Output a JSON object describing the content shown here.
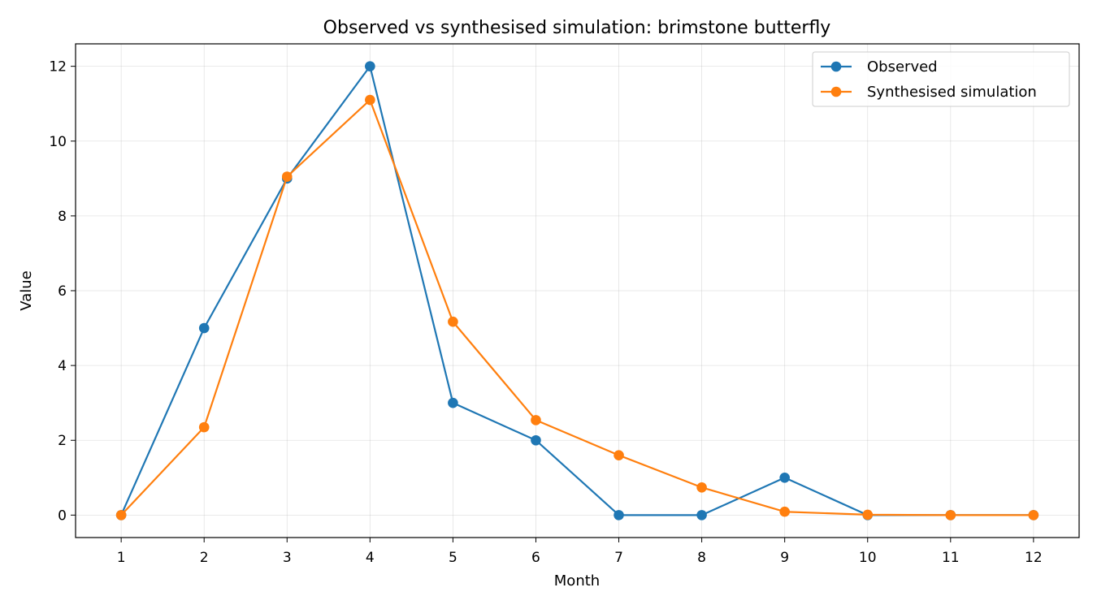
{
  "chart_data": {
    "type": "line",
    "title": "Observed vs synthesised simulation: brimstone butterfly",
    "xlabel": "Month",
    "ylabel": "Value",
    "x": [
      1,
      2,
      3,
      4,
      5,
      6,
      7,
      8,
      9,
      10,
      11,
      12
    ],
    "xticks": [
      "1",
      "2",
      "3",
      "4",
      "5",
      "6",
      "7",
      "8",
      "9",
      "10",
      "11",
      "12"
    ],
    "yticks": [
      "0",
      "2",
      "4",
      "6",
      "8",
      "10",
      "12"
    ],
    "xlim": [
      0.45,
      12.55
    ],
    "ylim": [
      -0.6,
      12.6
    ],
    "grid": true,
    "legend_position": "top-right",
    "series": [
      {
        "name": "Observed",
        "color": "#1f77b4",
        "marker": "circle",
        "values": [
          0,
          5,
          9,
          12,
          3,
          2,
          0,
          0,
          1,
          0,
          0,
          0
        ]
      },
      {
        "name": "Synthesised simulation",
        "color": "#ff7f0e",
        "marker": "circle",
        "values": [
          0,
          2.35,
          9.05,
          11.1,
          5.17,
          2.54,
          1.6,
          0.74,
          0.09,
          0.01,
          0.0,
          0.0
        ]
      }
    ]
  }
}
